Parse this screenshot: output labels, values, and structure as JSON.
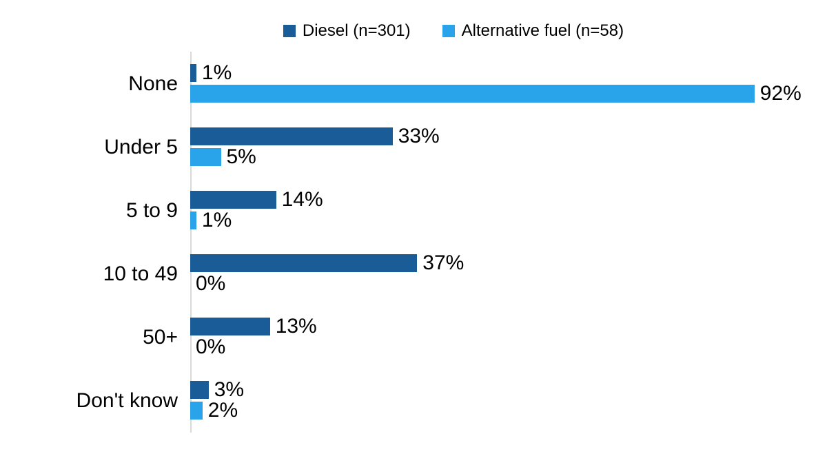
{
  "chart_data": {
    "type": "bar",
    "orientation": "horizontal",
    "title": "",
    "xlabel": "",
    "ylabel": "",
    "xlim": [
      0,
      100
    ],
    "grid": false,
    "legend_position": "top",
    "value_suffix": "%",
    "axis_line_color": "#d9d9d9",
    "categories": [
      "None",
      "Under 5",
      "5 to 9",
      "10 to 49",
      "50+",
      "Don't know"
    ],
    "series": [
      {
        "name": "Diesel (n=301)",
        "color": "#1a5c97",
        "values": [
          1,
          33,
          14,
          37,
          13,
          3
        ],
        "labels": [
          "1%",
          "33%",
          "14%",
          "37%",
          "13%",
          "3%"
        ]
      },
      {
        "name": "Alternative fuel (n=58)",
        "color": "#29a4ea",
        "values": [
          92,
          5,
          1,
          0,
          0,
          2
        ],
        "labels": [
          "92%",
          "5%",
          "1%",
          "0%",
          "0%",
          "2%"
        ]
      }
    ]
  }
}
